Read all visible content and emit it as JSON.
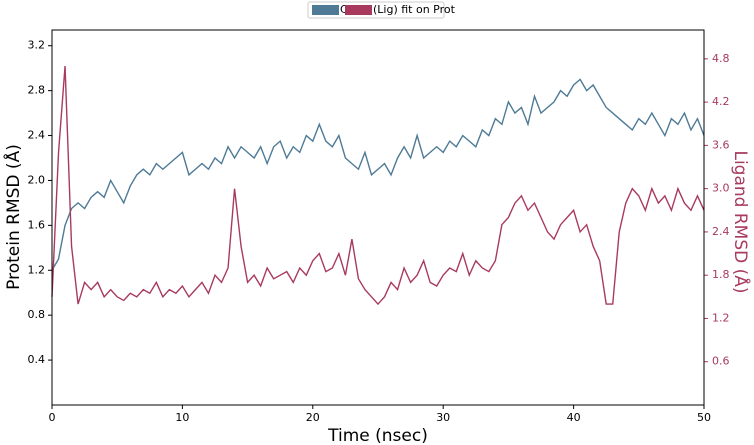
{
  "chart_data": {
    "type": "line",
    "xlabel": "Time (nsec)",
    "ylabel": "Protein RMSD (Å)",
    "y2label": "Ligand RMSD (Å)",
    "legend": "top",
    "x": [
      0,
      0.5,
      1,
      1.5,
      2,
      2.5,
      3,
      3.5,
      4,
      4.5,
      5,
      5.5,
      6,
      6.5,
      7,
      7.5,
      8,
      8.5,
      9,
      9.5,
      10,
      10.5,
      11,
      11.5,
      12,
      12.5,
      13,
      13.5,
      14,
      14.5,
      15,
      15.5,
      16,
      16.5,
      17,
      17.5,
      18,
      18.5,
      19,
      19.5,
      20,
      20.5,
      21,
      21.5,
      22,
      22.5,
      23,
      23.5,
      24,
      24.5,
      25,
      25.5,
      26,
      26.5,
      27,
      27.5,
      28,
      28.5,
      29,
      29.5,
      30,
      30.5,
      31,
      31.5,
      32,
      32.5,
      33,
      33.5,
      34,
      34.5,
      35,
      35.5,
      36,
      36.5,
      37,
      37.5,
      38,
      38.5,
      39,
      39.5,
      40,
      40.5,
      41,
      41.5,
      42,
      42.5,
      43,
      43.5,
      44,
      44.5,
      45,
      45.5,
      46,
      46.5,
      47,
      47.5,
      48,
      48.5,
      49,
      49.5,
      50
    ],
    "series": [
      {
        "name": "Cα",
        "color": "#4e7a96",
        "values": [
          1.2,
          1.3,
          1.6,
          1.75,
          1.8,
          1.75,
          1.85,
          1.9,
          1.85,
          2.0,
          1.9,
          1.8,
          1.95,
          2.05,
          2.1,
          2.05,
          2.15,
          2.1,
          2.15,
          2.2,
          2.25,
          2.05,
          2.1,
          2.15,
          2.1,
          2.2,
          2.15,
          2.3,
          2.2,
          2.3,
          2.25,
          2.2,
          2.3,
          2.15,
          2.3,
          2.35,
          2.2,
          2.3,
          2.25,
          2.4,
          2.35,
          2.5,
          2.35,
          2.3,
          2.4,
          2.2,
          2.15,
          2.1,
          2.25,
          2.05,
          2.1,
          2.15,
          2.05,
          2.2,
          2.3,
          2.2,
          2.4,
          2.2,
          2.25,
          2.3,
          2.25,
          2.35,
          2.3,
          2.4,
          2.35,
          2.3,
          2.45,
          2.4,
          2.55,
          2.5,
          2.7,
          2.6,
          2.65,
          2.5,
          2.75,
          2.6,
          2.65,
          2.7,
          2.8,
          2.75,
          2.85,
          2.9,
          2.8,
          2.85,
          2.75,
          2.65,
          2.6,
          2.55,
          2.5,
          2.45,
          2.55,
          2.5,
          2.6,
          2.5,
          2.4,
          2.55,
          2.5,
          2.6,
          2.45,
          2.55,
          2.4
        ]
      },
      {
        "name": "(Lig) fit on Prot",
        "color": "#a83a5e",
        "axis": "y2",
        "values": [
          1.5,
          3.5,
          4.7,
          2.2,
          1.4,
          1.7,
          1.6,
          1.7,
          1.5,
          1.6,
          1.5,
          1.45,
          1.55,
          1.5,
          1.6,
          1.55,
          1.7,
          1.5,
          1.6,
          1.55,
          1.65,
          1.5,
          1.6,
          1.7,
          1.55,
          1.8,
          1.7,
          1.9,
          3.0,
          2.2,
          1.7,
          1.8,
          1.65,
          1.9,
          1.75,
          1.8,
          1.85,
          1.7,
          1.9,
          1.8,
          2.0,
          2.1,
          1.85,
          1.9,
          2.1,
          1.8,
          2.3,
          1.75,
          1.6,
          1.5,
          1.4,
          1.5,
          1.7,
          1.6,
          1.9,
          1.7,
          1.8,
          2.0,
          1.7,
          1.65,
          1.8,
          1.9,
          1.85,
          2.1,
          1.8,
          2.0,
          1.9,
          1.85,
          2.0,
          2.5,
          2.6,
          2.8,
          2.9,
          2.7,
          2.8,
          2.6,
          2.4,
          2.3,
          2.5,
          2.6,
          2.7,
          2.4,
          2.5,
          2.2,
          2.0,
          1.4,
          1.4,
          2.4,
          2.8,
          3.0,
          2.9,
          2.7,
          3.0,
          2.8,
          2.9,
          2.7,
          3.0,
          2.8,
          2.7,
          2.9,
          2.7
        ]
      }
    ],
    "xlim": [
      0,
      50
    ],
    "xticks": [
      0,
      10,
      20,
      30,
      40,
      50
    ],
    "ylim": [
      0,
      3.34
    ],
    "yticks": [
      0.4,
      0.8,
      1.2,
      1.6,
      {
        "value": 2,
        "label": "2.0"
      },
      2.4,
      2.8,
      3.2
    ],
    "y2lim": [
      0,
      5.2
    ],
    "y2ticks": [
      0.6,
      1.2,
      1.8,
      2.4,
      {
        "value": 3,
        "label": "3.0"
      },
      3.6,
      4.2,
      4.8
    ]
  }
}
